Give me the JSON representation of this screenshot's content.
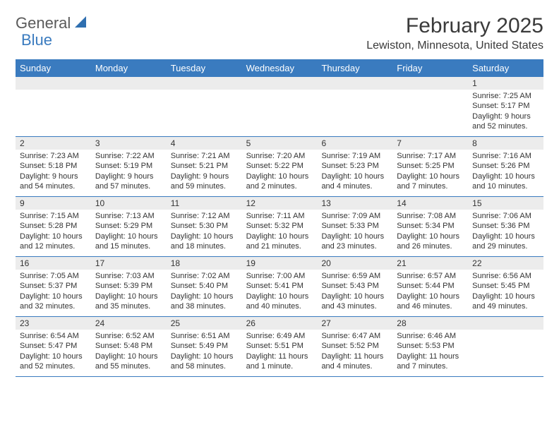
{
  "brand": {
    "text_general": "General",
    "text_blue": "Blue",
    "icon_color": "#2f6fb0"
  },
  "title": "February 2025",
  "location": "Lewiston, Minnesota, United States",
  "colors": {
    "header_bg": "#3a7bbf",
    "header_text": "#ffffff",
    "daynum_bg": "#ececec",
    "row_border": "#3a7bbf",
    "body_text": "#333333",
    "title_text": "#3a3a3a"
  },
  "layout": {
    "columns": 7,
    "rows": 5,
    "fontsize_body": 11,
    "fontsize_head": 13,
    "fontsize_title": 30,
    "fontsize_location": 16
  },
  "day_headers": [
    "Sunday",
    "Monday",
    "Tuesday",
    "Wednesday",
    "Thursday",
    "Friday",
    "Saturday"
  ],
  "weeks": [
    [
      {
        "n": "",
        "lines": []
      },
      {
        "n": "",
        "lines": []
      },
      {
        "n": "",
        "lines": []
      },
      {
        "n": "",
        "lines": []
      },
      {
        "n": "",
        "lines": []
      },
      {
        "n": "",
        "lines": []
      },
      {
        "n": "1",
        "lines": [
          "Sunrise: 7:25 AM",
          "Sunset: 5:17 PM",
          "Daylight: 9 hours and 52 minutes."
        ]
      }
    ],
    [
      {
        "n": "2",
        "lines": [
          "Sunrise: 7:23 AM",
          "Sunset: 5:18 PM",
          "Daylight: 9 hours and 54 minutes."
        ]
      },
      {
        "n": "3",
        "lines": [
          "Sunrise: 7:22 AM",
          "Sunset: 5:19 PM",
          "Daylight: 9 hours and 57 minutes."
        ]
      },
      {
        "n": "4",
        "lines": [
          "Sunrise: 7:21 AM",
          "Sunset: 5:21 PM",
          "Daylight: 9 hours and 59 minutes."
        ]
      },
      {
        "n": "5",
        "lines": [
          "Sunrise: 7:20 AM",
          "Sunset: 5:22 PM",
          "Daylight: 10 hours and 2 minutes."
        ]
      },
      {
        "n": "6",
        "lines": [
          "Sunrise: 7:19 AM",
          "Sunset: 5:23 PM",
          "Daylight: 10 hours and 4 minutes."
        ]
      },
      {
        "n": "7",
        "lines": [
          "Sunrise: 7:17 AM",
          "Sunset: 5:25 PM",
          "Daylight: 10 hours and 7 minutes."
        ]
      },
      {
        "n": "8",
        "lines": [
          "Sunrise: 7:16 AM",
          "Sunset: 5:26 PM",
          "Daylight: 10 hours and 10 minutes."
        ]
      }
    ],
    [
      {
        "n": "9",
        "lines": [
          "Sunrise: 7:15 AM",
          "Sunset: 5:28 PM",
          "Daylight: 10 hours and 12 minutes."
        ]
      },
      {
        "n": "10",
        "lines": [
          "Sunrise: 7:13 AM",
          "Sunset: 5:29 PM",
          "Daylight: 10 hours and 15 minutes."
        ]
      },
      {
        "n": "11",
        "lines": [
          "Sunrise: 7:12 AM",
          "Sunset: 5:30 PM",
          "Daylight: 10 hours and 18 minutes."
        ]
      },
      {
        "n": "12",
        "lines": [
          "Sunrise: 7:11 AM",
          "Sunset: 5:32 PM",
          "Daylight: 10 hours and 21 minutes."
        ]
      },
      {
        "n": "13",
        "lines": [
          "Sunrise: 7:09 AM",
          "Sunset: 5:33 PM",
          "Daylight: 10 hours and 23 minutes."
        ]
      },
      {
        "n": "14",
        "lines": [
          "Sunrise: 7:08 AM",
          "Sunset: 5:34 PM",
          "Daylight: 10 hours and 26 minutes."
        ]
      },
      {
        "n": "15",
        "lines": [
          "Sunrise: 7:06 AM",
          "Sunset: 5:36 PM",
          "Daylight: 10 hours and 29 minutes."
        ]
      }
    ],
    [
      {
        "n": "16",
        "lines": [
          "Sunrise: 7:05 AM",
          "Sunset: 5:37 PM",
          "Daylight: 10 hours and 32 minutes."
        ]
      },
      {
        "n": "17",
        "lines": [
          "Sunrise: 7:03 AM",
          "Sunset: 5:39 PM",
          "Daylight: 10 hours and 35 minutes."
        ]
      },
      {
        "n": "18",
        "lines": [
          "Sunrise: 7:02 AM",
          "Sunset: 5:40 PM",
          "Daylight: 10 hours and 38 minutes."
        ]
      },
      {
        "n": "19",
        "lines": [
          "Sunrise: 7:00 AM",
          "Sunset: 5:41 PM",
          "Daylight: 10 hours and 40 minutes."
        ]
      },
      {
        "n": "20",
        "lines": [
          "Sunrise: 6:59 AM",
          "Sunset: 5:43 PM",
          "Daylight: 10 hours and 43 minutes."
        ]
      },
      {
        "n": "21",
        "lines": [
          "Sunrise: 6:57 AM",
          "Sunset: 5:44 PM",
          "Daylight: 10 hours and 46 minutes."
        ]
      },
      {
        "n": "22",
        "lines": [
          "Sunrise: 6:56 AM",
          "Sunset: 5:45 PM",
          "Daylight: 10 hours and 49 minutes."
        ]
      }
    ],
    [
      {
        "n": "23",
        "lines": [
          "Sunrise: 6:54 AM",
          "Sunset: 5:47 PM",
          "Daylight: 10 hours and 52 minutes."
        ]
      },
      {
        "n": "24",
        "lines": [
          "Sunrise: 6:52 AM",
          "Sunset: 5:48 PM",
          "Daylight: 10 hours and 55 minutes."
        ]
      },
      {
        "n": "25",
        "lines": [
          "Sunrise: 6:51 AM",
          "Sunset: 5:49 PM",
          "Daylight: 10 hours and 58 minutes."
        ]
      },
      {
        "n": "26",
        "lines": [
          "Sunrise: 6:49 AM",
          "Sunset: 5:51 PM",
          "Daylight: 11 hours and 1 minute."
        ]
      },
      {
        "n": "27",
        "lines": [
          "Sunrise: 6:47 AM",
          "Sunset: 5:52 PM",
          "Daylight: 11 hours and 4 minutes."
        ]
      },
      {
        "n": "28",
        "lines": [
          "Sunrise: 6:46 AM",
          "Sunset: 5:53 PM",
          "Daylight: 11 hours and 7 minutes."
        ]
      },
      {
        "n": "",
        "lines": []
      }
    ]
  ]
}
